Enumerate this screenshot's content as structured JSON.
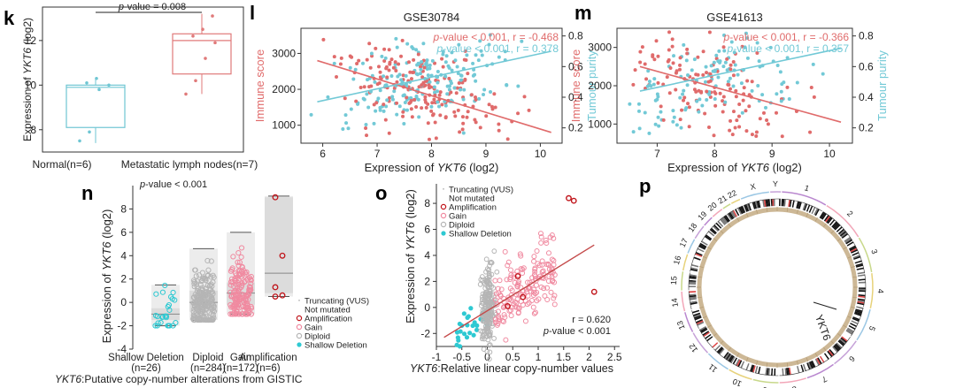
{
  "colors": {
    "normal": "#6fc6d3",
    "metastatic": "#e07a7a",
    "immune": "#e06b6b",
    "purity": "#72c9d6",
    "shallow": "#2ec9d2",
    "diploid": "#b5b5b5",
    "gain": "#f08aa0",
    "amplification": "#c0141a",
    "truncating": "#8a8a8a"
  },
  "chart_data": [
    {
      "panel": "k",
      "type": "box",
      "categories": [
        "Normal(n=6)",
        "Metastatic lymph nodes(n=7)"
      ],
      "ylabel_parts": [
        "Expression of ",
        "YKT6",
        " (log2)"
      ],
      "yticks": [
        8,
        10,
        12
      ],
      "ylim": [
        7,
        13.5
      ],
      "annotation_parts": [
        "p",
        "-value = 0.008"
      ],
      "boxes": [
        {
          "q1": 8.1,
          "median": 9.9,
          "q3": 10.0,
          "min": 7.4,
          "max": 10.3,
          "points": [
            7.5,
            7.9,
            9.8,
            10.0,
            10.1,
            10.3
          ]
        },
        {
          "q1": 10.5,
          "median": 12.0,
          "q3": 12.3,
          "min": 9.6,
          "max": 13.2,
          "points": [
            9.6,
            10.2,
            11.2,
            11.9,
            12.2,
            12.5,
            13.1
          ]
        }
      ]
    },
    {
      "panel": "l",
      "type": "scatter",
      "title": "GSE30784",
      "xlabel_parts": [
        "Expression of ",
        "YKT6",
        " (log2)"
      ],
      "ylabel_left": "Immune score",
      "ylabel_right": "Tumour purity",
      "xticks": [
        6,
        7,
        8,
        9,
        10
      ],
      "xlim": [
        5.6,
        10.4
      ],
      "yticks_left": [
        1000,
        2000,
        3000
      ],
      "ylim_left": [
        500,
        3700
      ],
      "yticks_right": [
        0.2,
        0.4,
        0.6,
        0.8
      ],
      "ylim_right": [
        0.1,
        0.85
      ],
      "stat_immune_parts": [
        "p",
        "-value < 0.001, r = -0.468"
      ],
      "stat_purity_parts": [
        "p",
        "-value < 0.001, r = 0.378"
      ],
      "immune_fit": {
        "x": [
          5.9,
          10.2
        ],
        "y": [
          2800,
          800
        ]
      },
      "purity_fit": {
        "x": [
          5.9,
          10.2
        ],
        "y": [
          0.37,
          0.7
        ]
      }
    },
    {
      "panel": "m",
      "type": "scatter",
      "title": "GSE41613",
      "xlabel_parts": [
        "Expression of ",
        "YKT6",
        " (log2)"
      ],
      "ylabel_left": "Immune score",
      "ylabel_right": "Tumour purity",
      "xticks": [
        7,
        8,
        9,
        10
      ],
      "xlim": [
        6.3,
        10.4
      ],
      "yticks_left": [
        1000,
        2000,
        3000
      ],
      "ylim_left": [
        500,
        3500
      ],
      "yticks_right": [
        0.2,
        0.4,
        0.6,
        0.8
      ],
      "ylim_right": [
        0.1,
        0.85
      ],
      "stat_immune_parts": [
        "p",
        "-value < 0.001, r = -0.366"
      ],
      "stat_purity_parts": [
        "p",
        "-value < 0.001, r = 0.357"
      ],
      "immune_fit": {
        "x": [
          6.7,
          10.2
        ],
        "y": [
          2500,
          1050
        ]
      },
      "purity_fit": {
        "x": [
          6.7,
          10.2
        ],
        "y": [
          0.44,
          0.72
        ]
      }
    },
    {
      "panel": "n",
      "type": "box",
      "categories": [
        "Shallow Deletion",
        "Diploid",
        "Gain",
        "Amplification"
      ],
      "counts": [
        "(n=26)",
        "(n=284)",
        "(n=172)",
        "(n=6)"
      ],
      "xlabel_parts": [
        "YKT6",
        ":Putative copy-number alterations from GISTIC"
      ],
      "ylabel_parts": [
        "Expression of ",
        "YKT6",
        " (log2)"
      ],
      "yticks": [
        -4,
        -2,
        0,
        2,
        4,
        6,
        8
      ],
      "ylim": [
        -4,
        10
      ],
      "annotation_parts": [
        "p",
        "-value < 0.001"
      ],
      "boxes": [
        {
          "q1": -1.5,
          "median": -1.0,
          "q3": -0.5,
          "min": -2.0,
          "max": 1.5
        },
        {
          "q1": -0.8,
          "median": 0.0,
          "q3": 1.0,
          "min": -1.5,
          "max": 4.6
        },
        {
          "q1": -0.2,
          "median": 0.8,
          "q3": 1.7,
          "min": -1.0,
          "max": 6.0
        },
        {
          "q1": 0.8,
          "median": 2.5,
          "q3": 9.0,
          "min": 0.5,
          "max": 9.1
        }
      ],
      "amp_points": [
        9.0,
        4.0,
        1.3,
        0.6,
        0.5
      ],
      "legend": [
        "Truncating (VUS)",
        "Not mutated",
        "Amplification",
        "Gain",
        "Diploid",
        "Shallow Deletion"
      ]
    },
    {
      "panel": "o",
      "type": "scatter",
      "xlabel_parts": [
        "YKT6",
        ":Relative linear copy-number values"
      ],
      "ylabel_parts": [
        "Expression of ",
        "YKT6",
        " (log2)"
      ],
      "xticks": [
        -1,
        -0.5,
        0,
        0.5,
        1,
        1.5,
        2,
        2.5
      ],
      "xlim": [
        -1,
        2.6
      ],
      "yticks": [
        -2,
        0,
        2,
        4,
        6,
        8
      ],
      "ylim": [
        -3,
        9.5
      ],
      "legend": [
        "Truncating (VUS)",
        "Not mutated",
        "Amplification",
        "Gain",
        "Diploid",
        "Shallow Deletion"
      ],
      "stat_r": "r = 0.620",
      "stat_p_parts": [
        "p",
        "-value < 0.001"
      ],
      "fit": {
        "x": [
          -0.85,
          2.1
        ],
        "y": [
          -2.3,
          4.8
        ]
      },
      "amp_points": [
        {
          "x": 1.6,
          "y": 8.4
        },
        {
          "x": 1.7,
          "y": 8.2
        },
        {
          "x": 2.1,
          "y": 1.2
        },
        {
          "x": 0.6,
          "y": 2.4
        },
        {
          "x": 0.7,
          "y": 0.8
        },
        {
          "x": 0.4,
          "y": 0.1
        }
      ]
    },
    {
      "panel": "p",
      "type": "circos",
      "chromosomes": [
        "1",
        "2",
        "3",
        "4",
        "5",
        "6",
        "7",
        "8",
        "9",
        "10",
        "11",
        "12",
        "13",
        "14",
        "15",
        "16",
        "17",
        "18",
        "19",
        "20",
        "21",
        "22",
        "X",
        "Y"
      ],
      "gene_label": "YKT6"
    }
  ],
  "panels": {
    "k": "k",
    "l": "l",
    "m": "m",
    "n": "n",
    "o": "o",
    "p": "p"
  }
}
